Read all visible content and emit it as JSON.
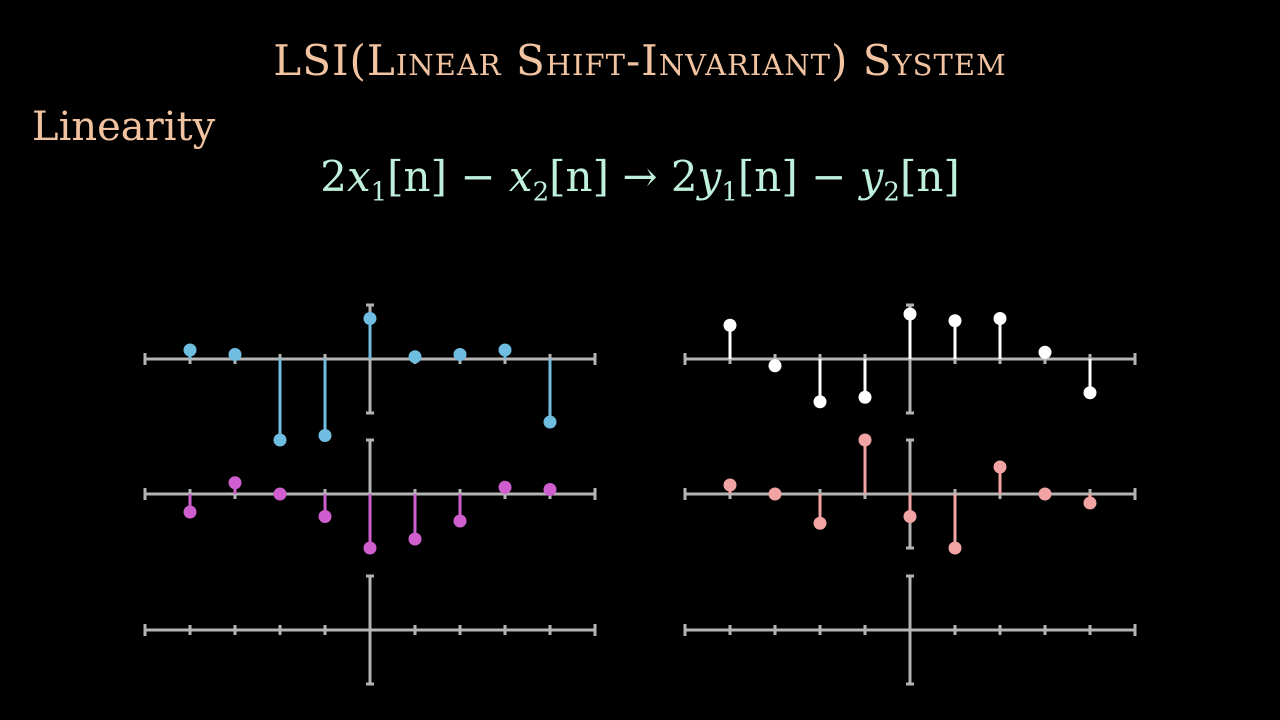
{
  "title": "LSI(Linear Shift-Invariant) System",
  "section_label": "Linearity",
  "equation": {
    "coef_x1": "2",
    "x1": "x",
    "x1_sub": "1",
    "x1_arg": "[n]",
    "minus1": "−",
    "x2": "x",
    "x2_sub": "2",
    "x2_arg": "[n]",
    "arrow": "→",
    "coef_y1": "2",
    "y1": "y",
    "y1_sub": "1",
    "y1_arg": "[n]",
    "minus2": "−",
    "y2": "y",
    "y2_sub": "2",
    "y2_arg": "[n]"
  },
  "colors": {
    "axis": "#b4b4b4",
    "x1": "#6fbde0",
    "x2": "#cf5fcf",
    "y1": "#ffffff",
    "y2": "#f2a3a3",
    "title": "#f2c3a0",
    "equation": "#bff0dc"
  },
  "chart_data": [
    {
      "type": "stem",
      "name": "x1",
      "n": [
        -4,
        -3,
        -2,
        -1,
        0,
        1,
        2,
        3,
        4
      ],
      "values": [
        0.2,
        0.1,
        -1.8,
        -1.7,
        0.9,
        0.05,
        0.1,
        0.2,
        -1.4
      ],
      "ylim": [
        -1,
        1
      ],
      "color_key": "x1"
    },
    {
      "type": "stem",
      "name": "x2",
      "n": [
        -4,
        -3,
        -2,
        -1,
        0,
        1,
        2,
        3,
        4
      ],
      "values": [
        -0.4,
        0.25,
        0.0,
        -0.5,
        -1.2,
        -1.0,
        -0.6,
        0.15,
        0.1
      ],
      "ylim": [
        -1,
        1
      ],
      "color_key": "x2"
    },
    {
      "type": "stem",
      "name": "",
      "n": [
        -4,
        -3,
        -2,
        -1,
        0,
        1,
        2,
        3,
        4
      ],
      "values": [],
      "ylim": [
        -1,
        1
      ],
      "color_key": "axis"
    },
    {
      "type": "stem",
      "name": "y1",
      "n": [
        -4,
        -3,
        -2,
        -1,
        0,
        1,
        2,
        3,
        4
      ],
      "values": [
        0.75,
        -0.15,
        -0.95,
        -0.85,
        1.0,
        0.85,
        0.9,
        0.15,
        -0.75
      ],
      "ylim": [
        -1,
        1
      ],
      "color_key": "y1"
    },
    {
      "type": "stem",
      "name": "y2",
      "n": [
        -4,
        -3,
        -2,
        -1,
        0,
        1,
        2,
        3,
        4
      ],
      "values": [
        0.2,
        0.0,
        -0.65,
        1.2,
        -0.5,
        -1.2,
        0.6,
        0.0,
        -0.2
      ],
      "ylim": [
        -1,
        1
      ],
      "color_key": "y2"
    },
    {
      "type": "stem",
      "name": "",
      "n": [
        -4,
        -3,
        -2,
        -1,
        0,
        1,
        2,
        3,
        4
      ],
      "values": [],
      "ylim": [
        -1,
        1
      ],
      "color_key": "axis"
    }
  ]
}
